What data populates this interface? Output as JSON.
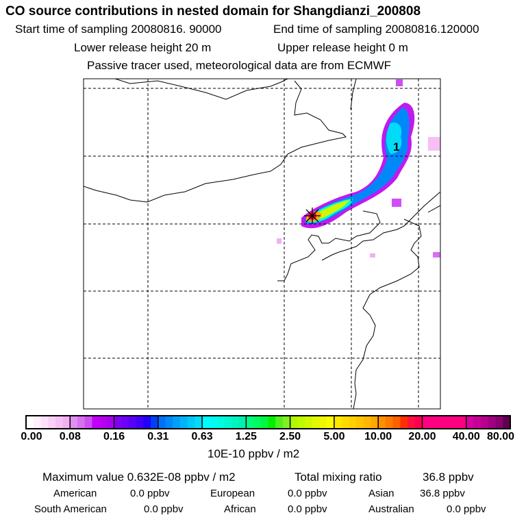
{
  "title": "CO  source contributions in nested domain for Shangdianzi_200808",
  "start_label": "Start time of sampling 20080816. 90000",
  "end_label": "End time of sampling 20080816.120000",
  "lower_label": "Lower release height   20 m",
  "upper_label": "Upper release height    0 m",
  "tracer_label": "Passive tracer used, meteorological data are from ECMWF",
  "map": {
    "marker_label": "1"
  },
  "colorbar": {
    "ticks": [
      "0.00",
      "0.08",
      "0.16",
      "0.31",
      "0.63",
      "1.25",
      "2.50",
      "5.00",
      "10.00",
      "20.00",
      "40.00",
      "80.00"
    ],
    "unit": "10E-10 ppbv / m2",
    "segments": [
      [
        "#ffffff",
        "#fff0fc",
        "#fde0fa",
        "#fad0f7",
        "#f6c0f4",
        "#f2b0f2"
      ],
      [
        "#e090f0",
        "#d870f0",
        "#cc50f0",
        "#c000f8",
        "#b800f0",
        "#a800f0"
      ],
      [
        "#8000f0",
        "#6c00f8",
        "#5800f8",
        "#4000f8",
        "#2400f8",
        "#0040f8"
      ],
      [
        "#0070f8",
        "#0088f8",
        "#00a0f8",
        "#00b4f8",
        "#00c8f8",
        "#00dcf8"
      ],
      [
        "#00fcfc",
        "#00fcf0",
        "#00fce0",
        "#00f8d0",
        "#00f4c0",
        "#00f0b0"
      ],
      [
        "#00fc80",
        "#00fc60",
        "#00f840",
        "#00f000",
        "#50f020",
        "#80f020"
      ],
      [
        "#b0f800",
        "#c0f800",
        "#d0f800",
        "#e0f800",
        "#f0f800",
        "#fcfc00"
      ],
      [
        "#ffe800",
        "#ffdc00",
        "#ffd000",
        "#ffc400",
        "#ffb800",
        "#ffa800"
      ],
      [
        "#ff9000",
        "#ff7800",
        "#ff6000",
        "#ff3000",
        "#ff1040",
        "#ff0050"
      ],
      [
        "#ff0080",
        "#ff0080",
        "#ff0080",
        "#ff0080",
        "#ff0080",
        "#ff0080"
      ],
      [
        "#d800a0",
        "#c80098",
        "#b80090",
        "#a00080",
        "#880070",
        "#600050"
      ]
    ]
  },
  "stats": {
    "max_label": "Maximum value  0.632E-08 ppbv / m2",
    "total_label": "Total mixing ratio",
    "total_value": "36.8 ppbv",
    "rows": [
      [
        {
          "name": "American",
          "value": "0.0 ppbv"
        },
        {
          "name": "European",
          "value": "0.0 ppbv"
        },
        {
          "name": "Asian",
          "value": "36.8 ppbv"
        }
      ],
      [
        {
          "name": "South American",
          "value": "0.0 ppbv"
        },
        {
          "name": "African",
          "value": "0.0 ppbv"
        },
        {
          "name": "Australian",
          "value": "0.0 ppbv"
        }
      ]
    ]
  }
}
